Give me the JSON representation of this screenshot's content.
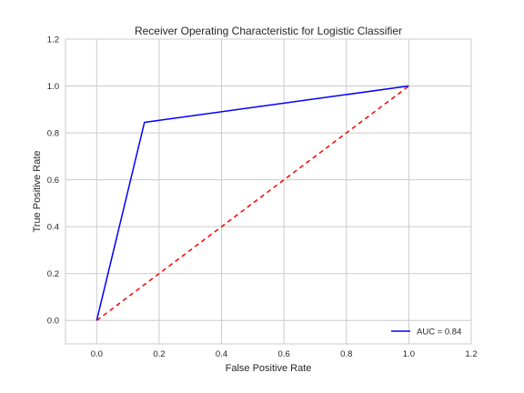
{
  "chart_data": {
    "type": "line",
    "title": "Receiver Operating Characteristic for Logistic Classifier",
    "xlabel": "False Positive Rate",
    "ylabel": "True Positive Rate",
    "xlim": [
      -0.1,
      1.2
    ],
    "ylim": [
      -0.1,
      1.2
    ],
    "xticks": [
      "0.0",
      "0.2",
      "0.4",
      "0.6",
      "0.8",
      "1.0",
      "1.2"
    ],
    "yticks": [
      "0.0",
      "0.2",
      "0.4",
      "0.6",
      "0.8",
      "1.0",
      "1.2"
    ],
    "grid": true,
    "legend_position": "lower-right",
    "series": [
      {
        "name": "AUC = 0.84",
        "color": "#0000ff",
        "style": "solid",
        "x": [
          0.0,
          0.153,
          1.0
        ],
        "y": [
          0.0,
          0.845,
          1.0
        ]
      },
      {
        "color": "#ff0000",
        "style": "dashed",
        "x": [
          0.0,
          1.0
        ],
        "y": [
          0.0,
          1.0
        ]
      }
    ],
    "colors": {
      "grid": "#cbcbcb",
      "frame": "#cbcbcb",
      "text": "#262626"
    }
  }
}
